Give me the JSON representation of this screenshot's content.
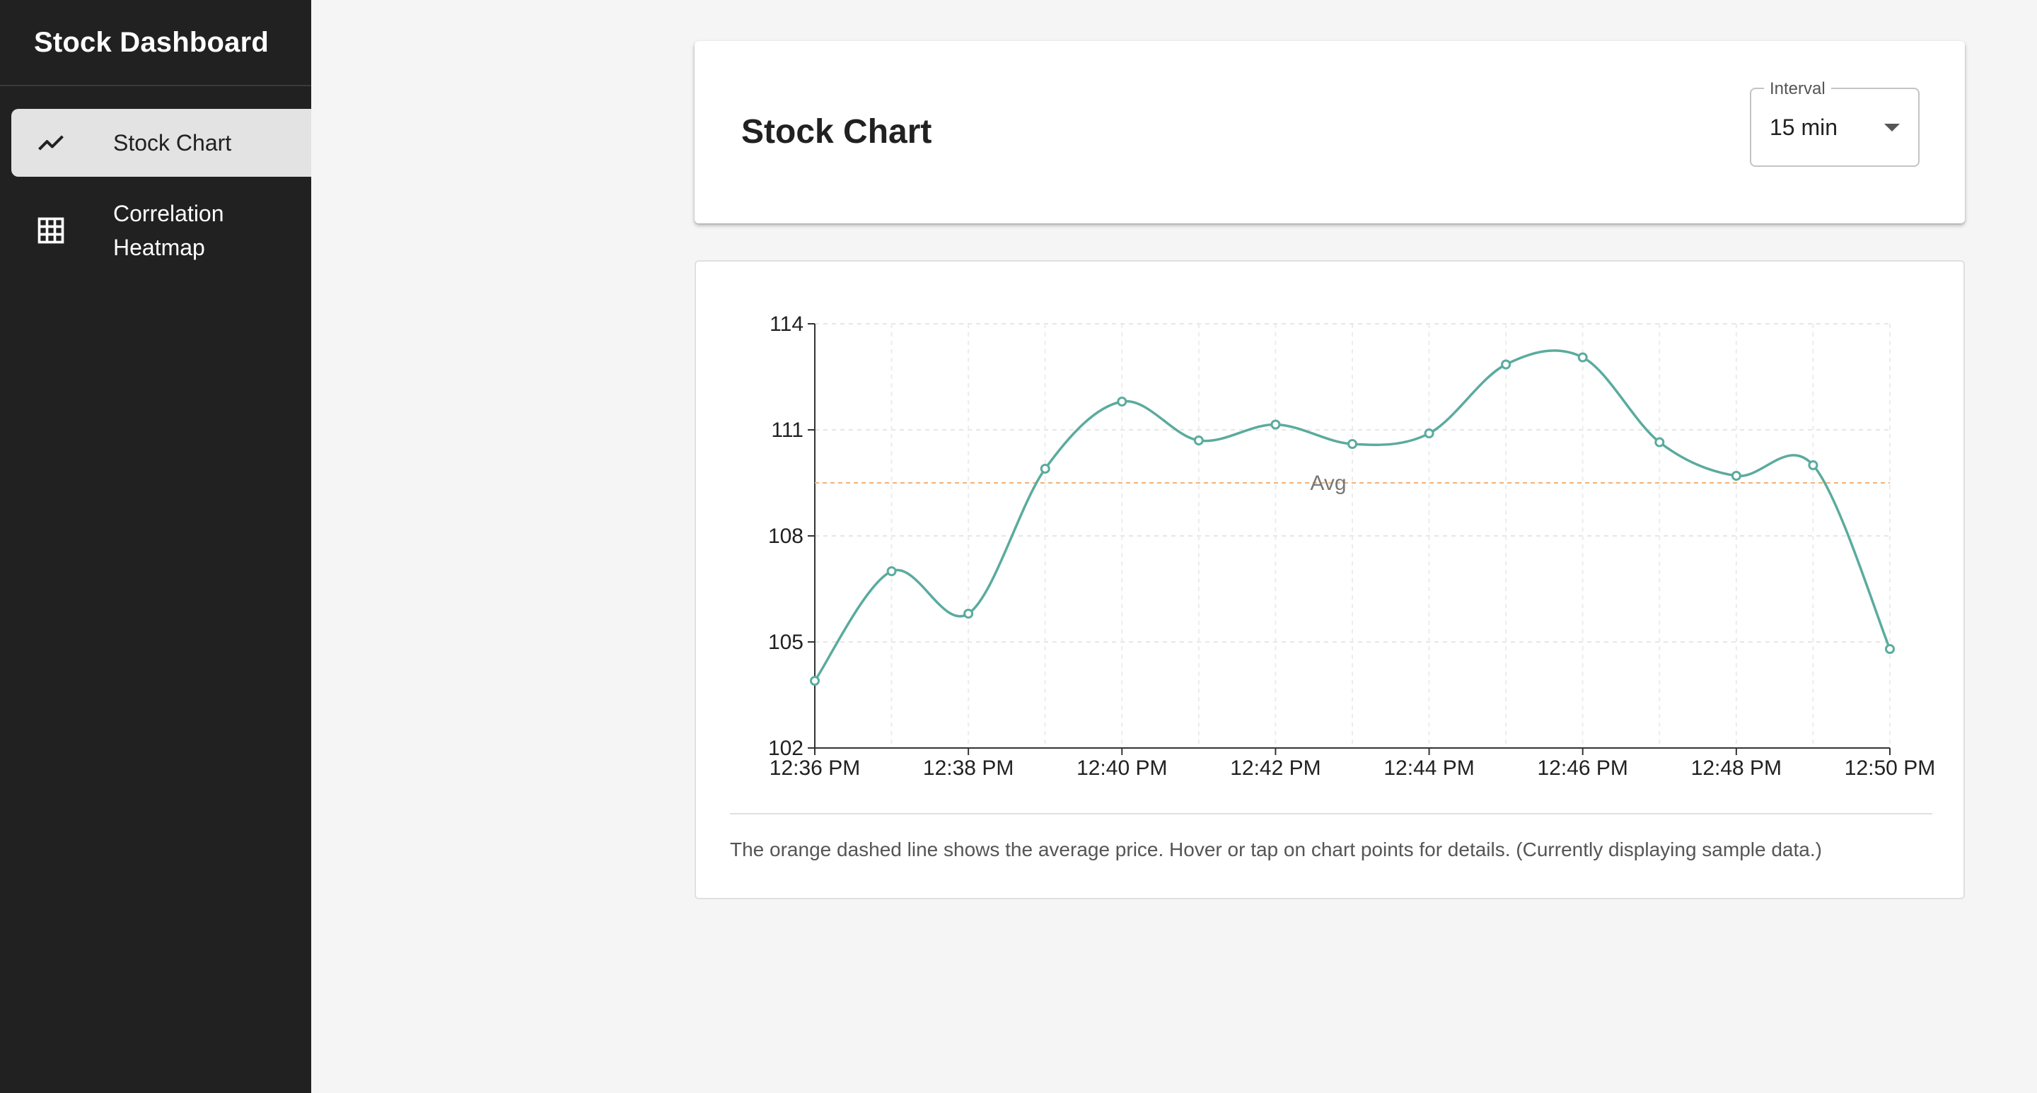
{
  "sidebar": {
    "title": "Stock Dashboard",
    "items": [
      {
        "label": "Stock Chart",
        "icon": "trending-line-icon",
        "active": true
      },
      {
        "label": "Correlation Heatmap",
        "icon": "grid-icon",
        "active": false
      }
    ]
  },
  "header": {
    "title": "Stock Chart",
    "interval": {
      "label": "Interval",
      "value": "15 min"
    }
  },
  "chart": {
    "caption": "The orange dashed line shows the average price. Hover or tap on chart points for details. (Currently displaying sample data.)"
  },
  "colors": {
    "line": "#5aab9e",
    "avg": "#f0b27a",
    "sidebar": "#212121",
    "accent_bg": "#e3e3e3"
  },
  "chart_data": {
    "type": "line",
    "x": [
      "12:36 PM",
      "12:37 PM",
      "12:38 PM",
      "12:39 PM",
      "12:40 PM",
      "12:41 PM",
      "12:42 PM",
      "12:43 PM",
      "12:44 PM",
      "12:45 PM",
      "12:46 PM",
      "12:47 PM",
      "12:48 PM",
      "12:49 PM",
      "12:50 PM"
    ],
    "x_tick_labels": [
      "12:36 PM",
      "12:38 PM",
      "12:40 PM",
      "12:42 PM",
      "12:44 PM",
      "12:46 PM",
      "12:48 PM",
      "12:50 PM"
    ],
    "values": [
      103.9,
      107.0,
      105.8,
      109.9,
      111.8,
      110.7,
      111.15,
      110.6,
      110.9,
      112.85,
      113.05,
      110.65,
      109.7,
      110.0,
      104.8
    ],
    "average": 109.5,
    "average_label": "Avg",
    "ylim": [
      102,
      114
    ],
    "y_ticks": [
      102,
      105,
      108,
      111,
      114
    ],
    "grid": true,
    "xlabel": "",
    "ylabel": "",
    "title": ""
  }
}
